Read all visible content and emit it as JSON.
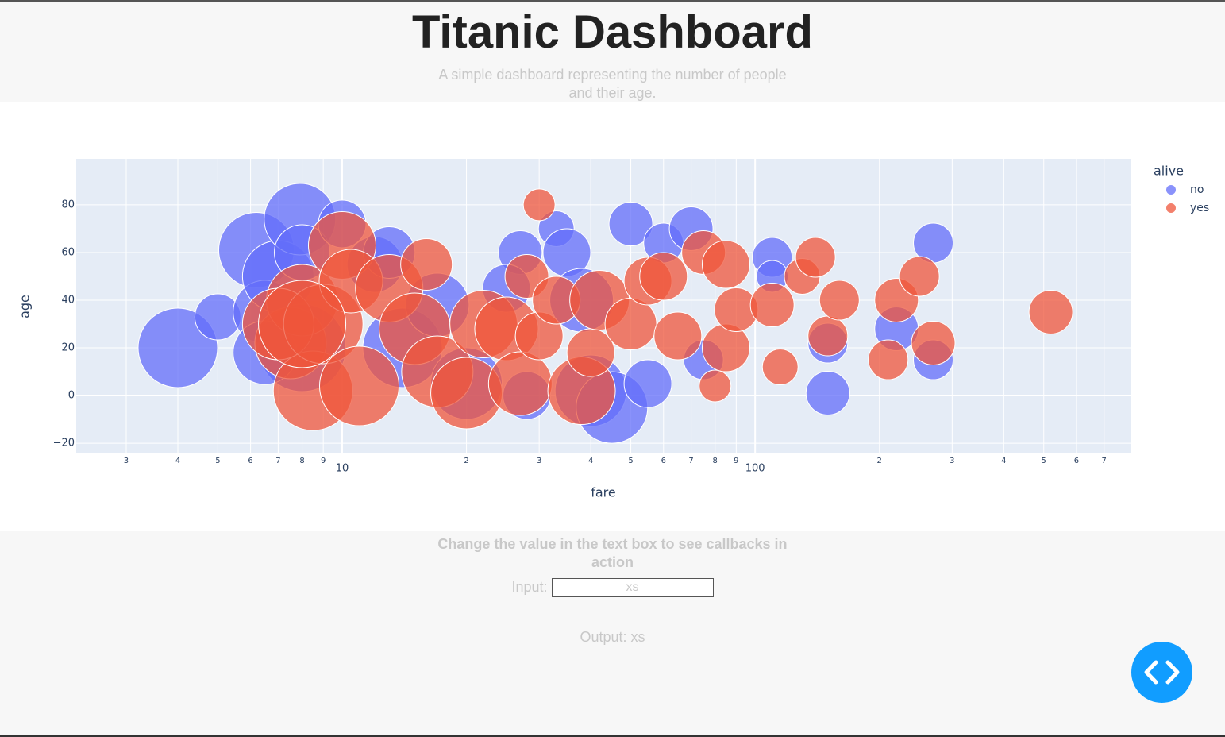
{
  "header": {
    "title": "Titanic Dashboard",
    "subtitle": "A simple dashboard representing the number of people and their age."
  },
  "chart_data": {
    "type": "scatter",
    "x_label": "fare",
    "y_label": "age",
    "legend_title": "alive",
    "log_x": true,
    "grid": true,
    "legend_position": "right",
    "xlim": [
      2.27,
      811
    ],
    "ylim": [
      -24.3,
      99.3
    ],
    "xticks": [
      3,
      4,
      5,
      6,
      7,
      8,
      9,
      10,
      {
        "value": 20,
        "label": "2"
      },
      {
        "value": 30,
        "label": "3"
      },
      {
        "value": 40,
        "label": "4"
      },
      {
        "value": 50,
        "label": "5"
      },
      {
        "value": 60,
        "label": "6"
      },
      {
        "value": 70,
        "label": "7"
      },
      {
        "value": 80,
        "label": "8"
      },
      {
        "value": 90,
        "label": "9"
      },
      100,
      {
        "value": 200,
        "label": "2"
      },
      {
        "value": 300,
        "label": "3"
      },
      {
        "value": 400,
        "label": "4"
      },
      {
        "value": 500,
        "label": "5"
      },
      {
        "value": 600,
        "label": "6"
      },
      {
        "value": 700,
        "label": "7"
      }
    ],
    "yticks": [
      {
        "value": -20,
        "label": "−20"
      },
      0,
      20,
      40,
      60,
      80
    ],
    "series": [
      {
        "name": "no",
        "color": "#636efa",
        "x": [
          4,
          5,
          6.2,
          6.5,
          7,
          7.9,
          8,
          10,
          8,
          6.5,
          12,
          13,
          14,
          20,
          27,
          28,
          33,
          35,
          40,
          45,
          50,
          60,
          70,
          75,
          110,
          110,
          150,
          150,
          270,
          220,
          270,
          55,
          38,
          25,
          17
        ],
        "y": [
          20,
          33,
          61,
          35,
          50,
          74,
          60,
          72,
          20,
          18,
          55,
          60,
          20,
          5,
          60,
          0,
          70,
          60,
          2,
          -5,
          72,
          64,
          70,
          15,
          58,
          50,
          1,
          22,
          64,
          28,
          15,
          5,
          40,
          45,
          38
        ],
        "sizes": [
          100,
          58,
          95,
          80,
          90,
          90,
          70,
          60,
          110,
          80,
          70,
          65,
          100,
          90,
          55,
          60,
          45,
          60,
          90,
          90,
          55,
          50,
          55,
          50,
          50,
          40,
          55,
          50,
          50,
          55,
          50,
          60,
          80,
          60,
          80
        ]
      },
      {
        "name": "yes",
        "color": "#ef553b",
        "x": [
          7.5,
          8.5,
          8,
          7,
          9,
          10,
          10.5,
          11,
          13,
          15,
          17,
          20,
          22,
          25,
          28,
          27,
          30,
          33,
          38,
          40,
          42,
          50,
          55,
          60,
          65,
          75,
          80,
          85,
          85,
          90,
          110,
          115,
          130,
          140,
          150,
          160,
          210,
          220,
          250,
          270,
          520,
          30,
          16,
          8
        ],
        "y": [
          22,
          2,
          40,
          30,
          30,
          63,
          48,
          4,
          45,
          28,
          10,
          1,
          30,
          28,
          50,
          5,
          25,
          40,
          2,
          18,
          40,
          30,
          48,
          50,
          25,
          60,
          4,
          55,
          20,
          36,
          38,
          12,
          50,
          58,
          25,
          40,
          15,
          40,
          50,
          22,
          35,
          80,
          55,
          30
        ],
        "sizes": [
          90,
          100,
          90,
          90,
          100,
          85,
          80,
          100,
          85,
          90,
          90,
          90,
          85,
          80,
          55,
          80,
          60,
          60,
          85,
          60,
          75,
          65,
          60,
          60,
          60,
          55,
          40,
          60,
          60,
          55,
          55,
          45,
          45,
          50,
          50,
          50,
          50,
          55,
          50,
          55,
          55,
          40,
          65,
          110
        ]
      }
    ]
  },
  "form": {
    "prompt": "Change the value in the text box to see callbacks in action",
    "input_label": "Input:",
    "input_value": "xs",
    "output": "Output: xs"
  }
}
